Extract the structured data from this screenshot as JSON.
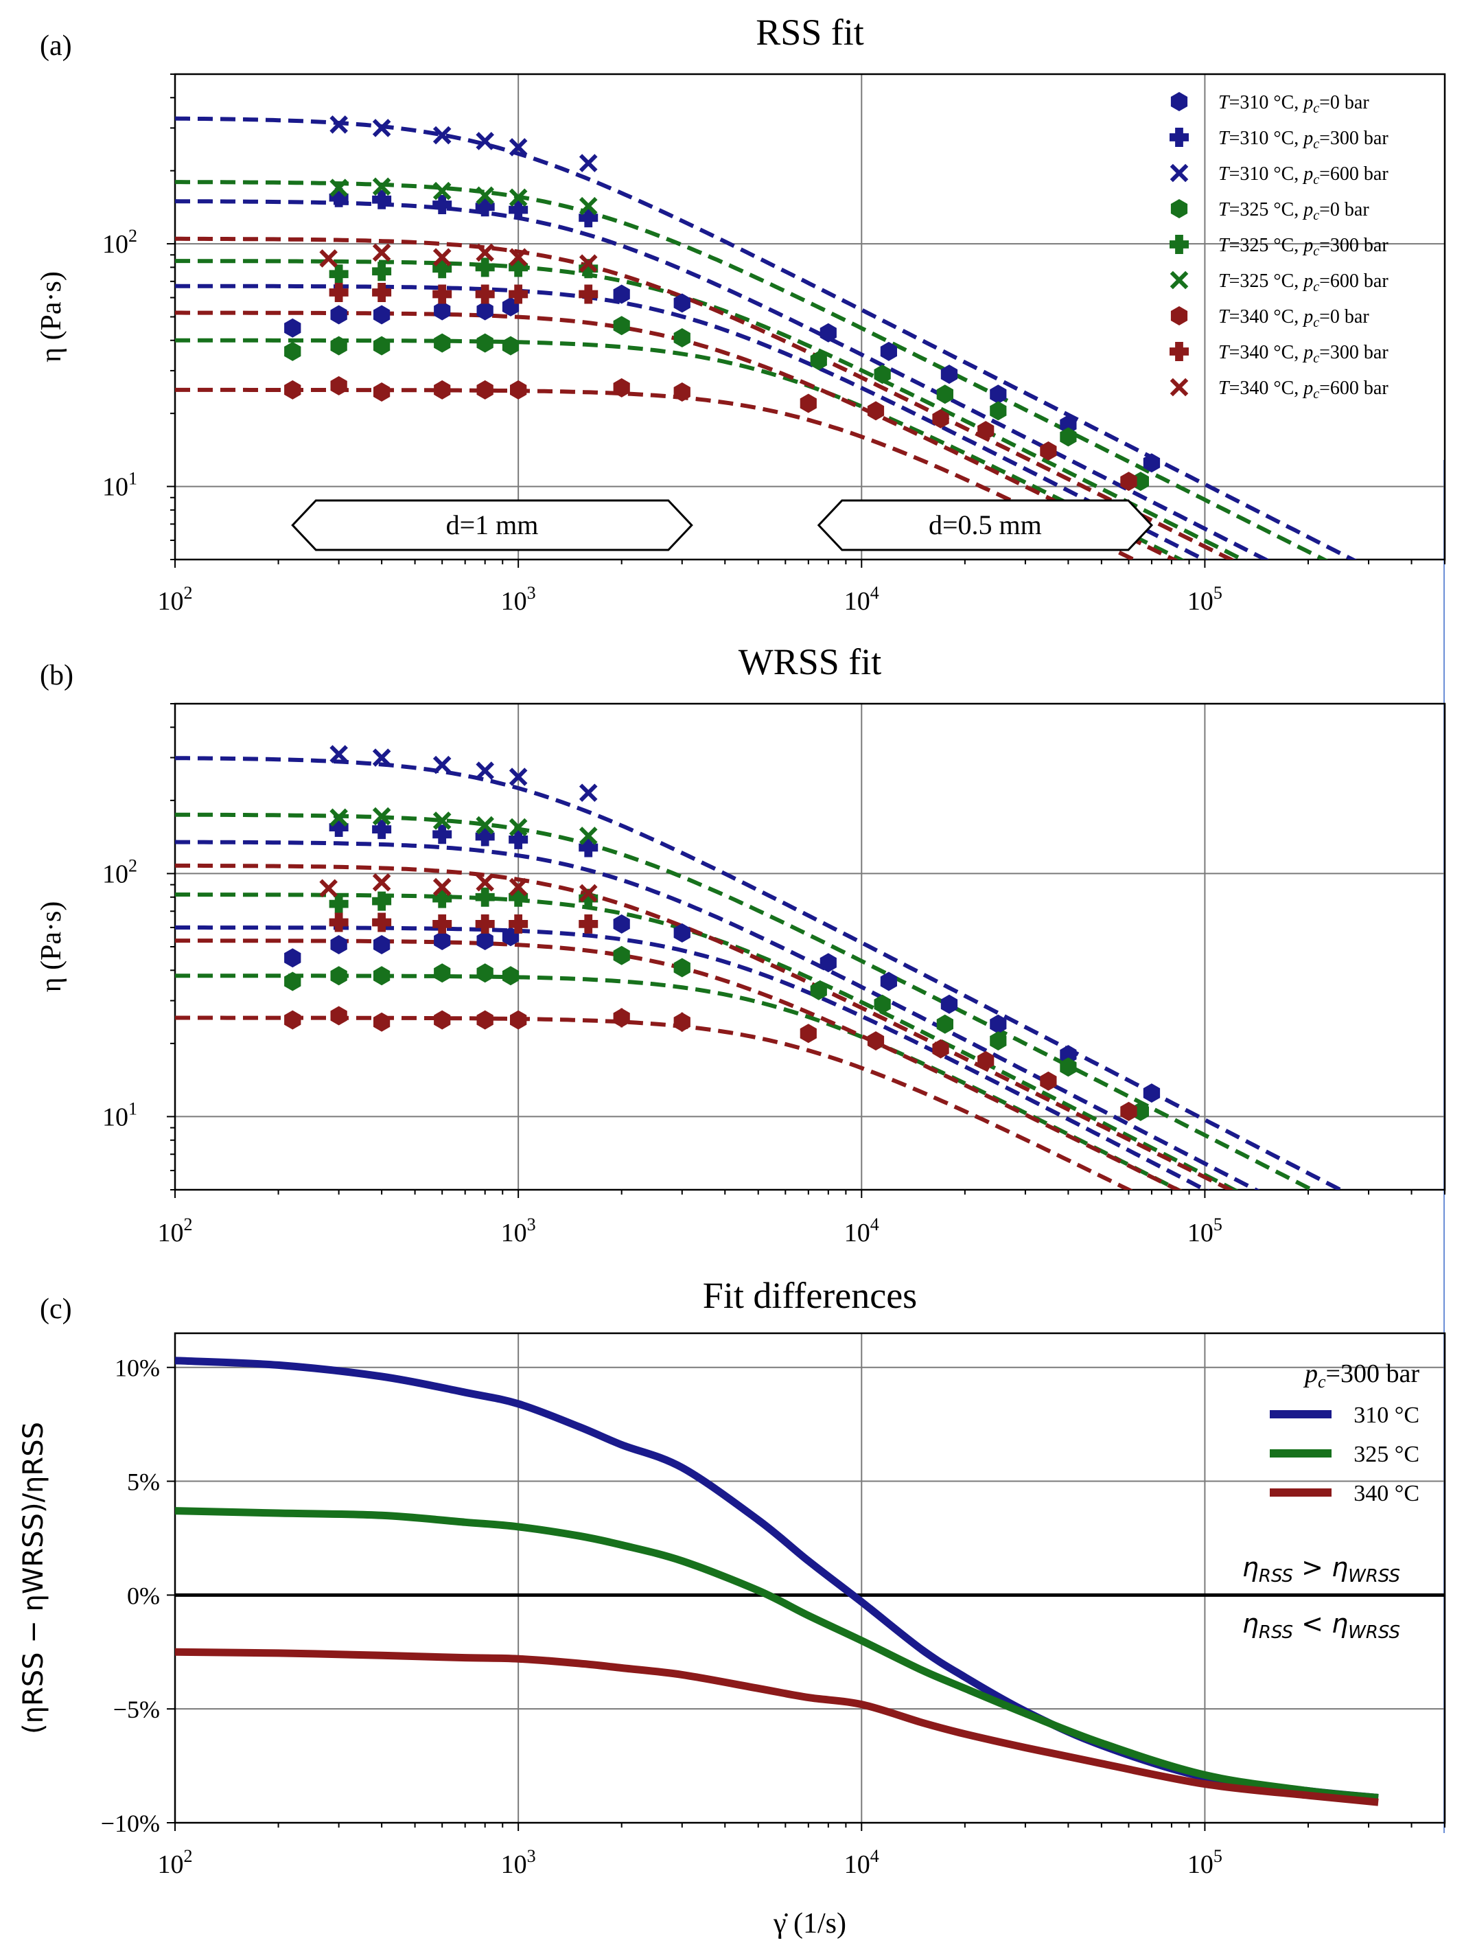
{
  "colors": {
    "blue": "#1a1a8c",
    "green": "#17711c",
    "red": "#8c1a1a",
    "grid": "#7a7a7a",
    "axis": "#000000"
  },
  "chart_data": [
    {
      "type": "scatter",
      "panel_label": "(a)",
      "title": "RSS fit",
      "ylabel": "η (Pa·s)",
      "xlabel": "",
      "xscale": "log",
      "yscale": "log",
      "xlim": [
        100,
        500000
      ],
      "ylim": [
        5,
        500
      ],
      "xticks": [
        {
          "v": 100,
          "b": "10",
          "e": "2"
        },
        {
          "v": 1000,
          "b": "10",
          "e": "3"
        },
        {
          "v": 10000,
          "b": "10",
          "e": "4"
        },
        {
          "v": 100000,
          "b": "10",
          "e": "5"
        }
      ],
      "yticks": [
        {
          "v": 10,
          "b": "10",
          "e": "1"
        },
        {
          "v": 100,
          "b": "10",
          "e": "2"
        }
      ],
      "legend": [
        {
          "T": "T",
          "t1": "=310 °C,  ",
          "p": "p",
          "c": "c",
          "t2": "=0 bar",
          "color": "blue",
          "marker": "hex"
        },
        {
          "T": "T",
          "t1": "=310 °C,  ",
          "p": "p",
          "c": "c",
          "t2": "=300 bar",
          "color": "blue",
          "marker": "plus"
        },
        {
          "T": "T",
          "t1": "=310 °C,  ",
          "p": "p",
          "c": "c",
          "t2": "=600 bar",
          "color": "blue",
          "marker": "x"
        },
        {
          "T": "T",
          "t1": "=325 °C,  ",
          "p": "p",
          "c": "c",
          "t2": "=0 bar",
          "color": "green",
          "marker": "hex"
        },
        {
          "T": "T",
          "t1": "=325 °C,  ",
          "p": "p",
          "c": "c",
          "t2": "=300 bar",
          "color": "green",
          "marker": "plus"
        },
        {
          "T": "T",
          "t1": "=325 °C,  ",
          "p": "p",
          "c": "c",
          "t2": "=600 bar",
          "color": "green",
          "marker": "x"
        },
        {
          "T": "T",
          "t1": "=340 °C,  ",
          "p": "p",
          "c": "c",
          "t2": "=0 bar",
          "color": "red",
          "marker": "hex"
        },
        {
          "T": "T",
          "t1": "=340 °C,  ",
          "p": "p",
          "c": "c",
          "t2": "=300 bar",
          "color": "red",
          "marker": "plus"
        },
        {
          "T": "T",
          "t1": "=340 °C,  ",
          "p": "p",
          "c": "c",
          "t2": "=600 bar",
          "color": "red",
          "marker": "x"
        }
      ],
      "annotations": [
        {
          "text": "d=1 mm",
          "x_from": 220,
          "x_to": 3200,
          "y": 5.3
        },
        {
          "text": "d=0.5 mm",
          "x_from": 7500,
          "x_to": 70000,
          "y": 5.3
        }
      ],
      "curves": [
        {
          "color": "blue",
          "eta0": 67,
          "tau": 0.00037,
          "n": 0.28
        },
        {
          "color": "blue",
          "eta0": 150,
          "tau": 0.00075,
          "n": 0.28
        },
        {
          "color": "blue",
          "eta0": 330,
          "tau": 0.00125,
          "n": 0.28
        },
        {
          "color": "green",
          "eta0": 40,
          "tau": 0.00022,
          "n": 0.29
        },
        {
          "color": "green",
          "eta0": 85,
          "tau": 0.00042,
          "n": 0.29
        },
        {
          "color": "green",
          "eta0": 180,
          "tau": 0.0007,
          "n": 0.29
        },
        {
          "color": "red",
          "eta0": 25,
          "tau": 0.00016,
          "n": 0.3
        },
        {
          "color": "red",
          "eta0": 52,
          "tau": 0.00035,
          "n": 0.3
        },
        {
          "color": "red",
          "eta0": 105,
          "tau": 0.00065,
          "n": 0.3
        }
      ],
      "series": [
        {
          "name": "T=310 °C, pc=0 bar",
          "color": "blue",
          "marker": "hex",
          "x": [
            220,
            300,
            400,
            600,
            800,
            950,
            2000,
            3000,
            8000,
            12000,
            18000,
            25000,
            40000,
            70000
          ],
          "y": [
            45,
            51,
            51,
            53,
            53,
            55,
            62,
            57,
            43,
            36,
            29,
            24,
            18,
            12.5
          ]
        },
        {
          "name": "T=310 °C, pc=300 bar",
          "color": "blue",
          "marker": "plus",
          "x": [
            300,
            400,
            600,
            800,
            1000,
            1600
          ],
          "y": [
            155,
            152,
            145,
            142,
            138,
            128
          ]
        },
        {
          "name": "T=310 °C, pc=600 bar",
          "color": "blue",
          "marker": "x",
          "x": [
            300,
            400,
            600,
            800,
            1000,
            1600
          ],
          "y": [
            310,
            300,
            280,
            265,
            250,
            215
          ]
        },
        {
          "name": "T=325 °C, pc=0 bar",
          "color": "green",
          "marker": "hex",
          "x": [
            220,
            300,
            400,
            600,
            800,
            950,
            2000,
            3000,
            7500,
            11500,
            17500,
            25000,
            40000,
            65000
          ],
          "y": [
            36,
            38,
            38,
            39,
            39,
            38,
            46,
            41,
            33,
            29,
            24,
            20.5,
            16,
            10.5
          ]
        },
        {
          "name": "T=325 °C, pc=300 bar",
          "color": "green",
          "marker": "plus",
          "x": [
            300,
            400,
            600,
            800,
            1000,
            1600
          ],
          "y": [
            75,
            77,
            79,
            80,
            80,
            79
          ]
        },
        {
          "name": "T=325 °C, pc=600 bar",
          "color": "green",
          "marker": "x",
          "x": [
            300,
            400,
            600,
            800,
            1000,
            1600
          ],
          "y": [
            170,
            172,
            165,
            158,
            155,
            143
          ]
        },
        {
          "name": "T=340 °C, pc=0 bar",
          "color": "red",
          "marker": "hex",
          "x": [
            220,
            300,
            400,
            600,
            800,
            1000,
            2000,
            3000,
            7000,
            11000,
            17000,
            23000,
            35000,
            60000
          ],
          "y": [
            25,
            26,
            24.5,
            25,
            25,
            25,
            25.5,
            24.5,
            22,
            20.5,
            19,
            17,
            14,
            10.5
          ]
        },
        {
          "name": "T=340 °C, pc=300 bar",
          "color": "red",
          "marker": "plus",
          "x": [
            300,
            400,
            600,
            800,
            1000,
            1600
          ],
          "y": [
            63,
            63,
            62,
            62,
            62,
            62
          ]
        },
        {
          "name": "T=340 °C, pc=600 bar",
          "color": "red",
          "marker": "x",
          "x": [
            280,
            400,
            600,
            800,
            1000,
            1600
          ],
          "y": [
            87,
            92,
            88,
            92,
            88,
            83
          ]
        }
      ]
    },
    {
      "type": "scatter",
      "panel_label": "(b)",
      "title": "WRSS fit",
      "ylabel": "η (Pa·s)",
      "xlabel": "",
      "xscale": "log",
      "yscale": "log",
      "xlim": [
        100,
        500000
      ],
      "ylim": [
        5,
        500
      ],
      "xticks": [
        {
          "v": 100,
          "b": "10",
          "e": "2"
        },
        {
          "v": 1000,
          "b": "10",
          "e": "3"
        },
        {
          "v": 10000,
          "b": "10",
          "e": "4"
        },
        {
          "v": 100000,
          "b": "10",
          "e": "5"
        }
      ],
      "yticks": [
        {
          "v": 10,
          "b": "10",
          "e": "1"
        },
        {
          "v": 100,
          "b": "10",
          "e": "2"
        }
      ],
      "curves": [
        {
          "color": "blue",
          "eta0": 60,
          "tau": 0.0003,
          "n": 0.27
        },
        {
          "color": "blue",
          "eta0": 135,
          "tau": 0.00065,
          "n": 0.27
        },
        {
          "color": "blue",
          "eta0": 300,
          "tau": 0.0011,
          "n": 0.27
        },
        {
          "color": "green",
          "eta0": 38,
          "tau": 0.0002,
          "n": 0.28
        },
        {
          "color": "green",
          "eta0": 82,
          "tau": 0.0004,
          "n": 0.28
        },
        {
          "color": "green",
          "eta0": 175,
          "tau": 0.00068,
          "n": 0.28
        },
        {
          "color": "red",
          "eta0": 25.5,
          "tau": 0.00017,
          "n": 0.3
        },
        {
          "color": "red",
          "eta0": 53,
          "tau": 0.00035,
          "n": 0.3
        },
        {
          "color": "red",
          "eta0": 108,
          "tau": 0.00068,
          "n": 0.3
        }
      ],
      "series": [
        {
          "name": "T=310 °C, pc=0 bar",
          "color": "blue",
          "marker": "hex",
          "x": [
            220,
            300,
            400,
            600,
            800,
            950,
            2000,
            3000,
            8000,
            12000,
            18000,
            25000,
            40000,
            70000
          ],
          "y": [
            45,
            51,
            51,
            53,
            53,
            55,
            62,
            57,
            43,
            36,
            29,
            24,
            18,
            12.5
          ]
        },
        {
          "name": "T=310 °C, pc=300 bar",
          "color": "blue",
          "marker": "plus",
          "x": [
            300,
            400,
            600,
            800,
            1000,
            1600
          ],
          "y": [
            155,
            152,
            145,
            142,
            138,
            128
          ]
        },
        {
          "name": "T=310 °C, pc=600 bar",
          "color": "blue",
          "marker": "x",
          "x": [
            300,
            400,
            600,
            800,
            1000,
            1600
          ],
          "y": [
            310,
            300,
            280,
            265,
            250,
            215
          ]
        },
        {
          "name": "T=325 °C, pc=0 bar",
          "color": "green",
          "marker": "hex",
          "x": [
            220,
            300,
            400,
            600,
            800,
            950,
            2000,
            3000,
            7500,
            11500,
            17500,
            25000,
            40000,
            65000
          ],
          "y": [
            36,
            38,
            38,
            39,
            39,
            38,
            46,
            41,
            33,
            29,
            24,
            20.5,
            16,
            10.5
          ]
        },
        {
          "name": "T=325 °C, pc=300 bar",
          "color": "green",
          "marker": "plus",
          "x": [
            300,
            400,
            600,
            800,
            1000,
            1600
          ],
          "y": [
            75,
            77,
            79,
            80,
            80,
            79
          ]
        },
        {
          "name": "T=325 °C, pc=600 bar",
          "color": "green",
          "marker": "x",
          "x": [
            300,
            400,
            600,
            800,
            1000,
            1600
          ],
          "y": [
            170,
            172,
            165,
            158,
            155,
            143
          ]
        },
        {
          "name": "T=340 °C, pc=0 bar",
          "color": "red",
          "marker": "hex",
          "x": [
            220,
            300,
            400,
            600,
            800,
            1000,
            2000,
            3000,
            7000,
            11000,
            17000,
            23000,
            35000,
            60000
          ],
          "y": [
            25,
            26,
            24.5,
            25,
            25,
            25,
            25.5,
            24.5,
            22,
            20.5,
            19,
            17,
            14,
            10.5
          ]
        },
        {
          "name": "T=340 °C, pc=300 bar",
          "color": "red",
          "marker": "plus",
          "x": [
            300,
            400,
            600,
            800,
            1000,
            1600
          ],
          "y": [
            63,
            63,
            62,
            62,
            62,
            62
          ]
        },
        {
          "name": "T=340 °C, pc=600 bar",
          "color": "red",
          "marker": "x",
          "x": [
            280,
            400,
            600,
            800,
            1000,
            1600
          ],
          "y": [
            87,
            92,
            88,
            92,
            88,
            83
          ]
        }
      ]
    },
    {
      "type": "line",
      "panel_label": "(c)",
      "title": "Fit differences",
      "xlabel": "γ̇ (1/s)",
      "ylabel": "(ηRSS − ηWRSS)/ηRSS",
      "xscale": "log",
      "xlim": [
        100,
        500000
      ],
      "ylim": [
        -10,
        11.5
      ],
      "xticks": [
        {
          "v": 100,
          "b": "10",
          "e": "2"
        },
        {
          "v": 1000,
          "b": "10",
          "e": "3"
        },
        {
          "v": 10000,
          "b": "10",
          "e": "4"
        },
        {
          "v": 100000,
          "b": "10",
          "e": "5"
        }
      ],
      "yticks": [
        {
          "v": 10,
          "label": "10%"
        },
        {
          "v": 5,
          "label": "5%"
        },
        {
          "v": 0,
          "label": "0%"
        },
        {
          "v": -5,
          "label": "−5%"
        },
        {
          "v": -10,
          "label": "−10%"
        }
      ],
      "legend_title": {
        "p": "p",
        "c": "c",
        "t": "=300 bar"
      },
      "legend": [
        {
          "label": "310 °C",
          "color": "blue"
        },
        {
          "label": "325 °C",
          "color": "green"
        },
        {
          "label": "340 °C",
          "color": "red"
        }
      ],
      "region_labels": [
        {
          "a": "η",
          "as": "RSS",
          "op": " > ",
          "b": "η",
          "bs": "WRSS"
        },
        {
          "a": "η",
          "as": "RSS",
          "op": " < ",
          "b": "η",
          "bs": "WRSS"
        }
      ],
      "series": [
        {
          "name": "310 °C",
          "color": "blue",
          "x": [
            100,
            200,
            400,
            700,
            1000,
            1500,
            2000,
            3000,
            5000,
            7000,
            10000,
            15000,
            20000,
            30000,
            50000,
            100000,
            200000,
            320000
          ],
          "y": [
            10.3,
            10.1,
            9.6,
            8.9,
            8.4,
            7.4,
            6.6,
            5.6,
            3.3,
            1.5,
            -0.3,
            -2.4,
            -3.6,
            -5.1,
            -6.6,
            -8.0,
            -8.6,
            -8.9
          ]
        },
        {
          "name": "325 °C",
          "color": "green",
          "x": [
            100,
            200,
            400,
            700,
            1000,
            1500,
            2000,
            3000,
            5000,
            7000,
            10000,
            15000,
            20000,
            30000,
            50000,
            100000,
            200000,
            320000
          ],
          "y": [
            3.7,
            3.6,
            3.5,
            3.2,
            3.0,
            2.6,
            2.2,
            1.5,
            0.2,
            -0.9,
            -2.0,
            -3.3,
            -4.1,
            -5.2,
            -6.5,
            -7.9,
            -8.6,
            -8.9
          ]
        },
        {
          "name": "340 °C",
          "color": "red",
          "x": [
            100,
            200,
            400,
            700,
            1000,
            1500,
            2000,
            3000,
            5000,
            7000,
            10000,
            15000,
            20000,
            30000,
            50000,
            100000,
            200000,
            320000
          ],
          "y": [
            -2.5,
            -2.55,
            -2.65,
            -2.75,
            -2.8,
            -3.0,
            -3.2,
            -3.5,
            -4.1,
            -4.5,
            -4.8,
            -5.6,
            -6.1,
            -6.7,
            -7.4,
            -8.3,
            -8.8,
            -9.1
          ]
        }
      ]
    }
  ]
}
